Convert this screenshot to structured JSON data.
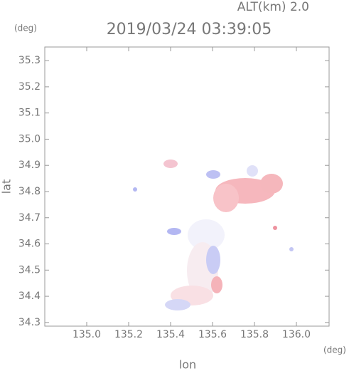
{
  "chart_data": {
    "type": "map",
    "title": "2019/03/24 03:39:05",
    "subtitle": "ALT(km) 2.0",
    "x_label": "lon",
    "y_label": "lat",
    "x_unit": "(deg)",
    "y_unit": "(deg)",
    "xlim": [
      134.8,
      136.156
    ],
    "ylim": [
      34.286,
      35.352
    ],
    "xticks": [
      {
        "value": 135.0,
        "label": "135.0"
      },
      135.2,
      135.4,
      135.6,
      135.8,
      {
        "value": 136.0,
        "label": "136.0"
      }
    ],
    "yticks": [
      34.3,
      34.4,
      34.5,
      34.6,
      34.7,
      34.8,
      34.9,
      {
        "value": 35.0,
        "label": "35.0"
      },
      35.1,
      35.2,
      35.3
    ]
  }
}
